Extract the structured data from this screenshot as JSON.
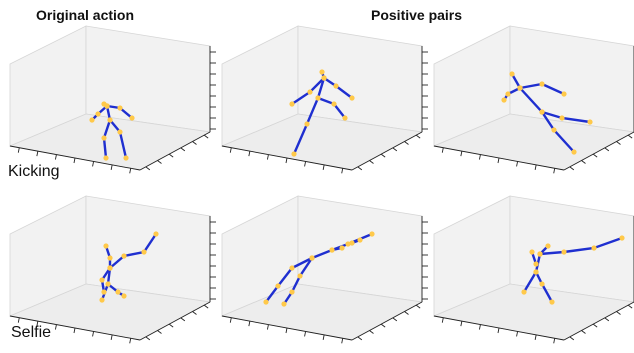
{
  "header": {
    "original_label": "Original action",
    "positive_label": "Positive pairs"
  },
  "rows": [
    {
      "label": "Kicking"
    },
    {
      "label": "Selfie"
    }
  ],
  "colors": {
    "bone": "#1f2fd0",
    "joint": "#ffc94a"
  }
}
